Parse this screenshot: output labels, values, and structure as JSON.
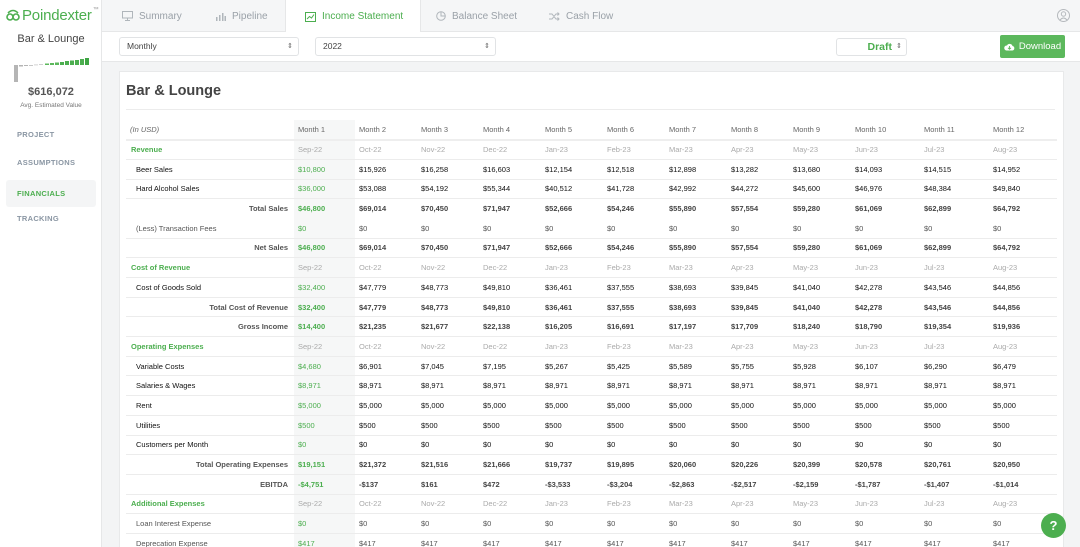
{
  "app": {
    "logo": "Poindexter",
    "tm": "™"
  },
  "sidebar": {
    "project_name": "Bar & Lounge",
    "est_value": "$616,072",
    "est_label": "Avg. Estimated Value",
    "items": [
      {
        "label": "PROJECT"
      },
      {
        "label": "ASSUMPTIONS"
      },
      {
        "label": "FINANCIALS"
      },
      {
        "label": "TRACKING"
      }
    ]
  },
  "tabs": [
    {
      "label": "Summary"
    },
    {
      "label": "Pipeline"
    },
    {
      "label": "Income Statement"
    },
    {
      "label": "Balance Sheet"
    },
    {
      "label": "Cash Flow"
    }
  ],
  "toolbar": {
    "period": "Monthly",
    "year": "2022",
    "status": "Draft",
    "download_label": "Download"
  },
  "colors": {
    "accent": "#4cae4f",
    "button": "#5cb85c"
  },
  "statement": {
    "title": "Bar & Lounge",
    "unit_label": "(In USD)",
    "months": [
      "Month 1",
      "Month 2",
      "Month 3",
      "Month 4",
      "Month 5",
      "Month 6",
      "Month 7",
      "Month 8",
      "Month 9",
      "Month 10",
      "Month 11",
      "Month 12"
    ],
    "dates": [
      "Sep-22",
      "Oct-22",
      "Nov-22",
      "Dec-22",
      "Jan-23",
      "Feb-23",
      "Mar-23",
      "Apr-23",
      "May-23",
      "Jun-23",
      "Jul-23",
      "Aug-23"
    ],
    "sections": {
      "revenue": "Revenue",
      "cost_of_revenue": "Cost of Revenue",
      "operating_expenses": "Operating Expenses",
      "additional_expenses": "Additional Expenses"
    },
    "rows": {
      "beer_sales": {
        "label": "Beer Sales",
        "values": [
          "$10,800",
          "$15,926",
          "$16,258",
          "$16,603",
          "$12,154",
          "$12,518",
          "$12,898",
          "$13,282",
          "$13,680",
          "$14,093",
          "$14,515",
          "$14,952"
        ]
      },
      "hard_alcohol_sales": {
        "label": "Hard Alcohol Sales",
        "values": [
          "$36,000",
          "$53,088",
          "$54,192",
          "$55,344",
          "$40,512",
          "$41,728",
          "$42,992",
          "$44,272",
          "$45,600",
          "$46,976",
          "$48,384",
          "$49,840"
        ]
      },
      "total_sales": {
        "label": "Total Sales",
        "values": [
          "$46,800",
          "$69,014",
          "$70,450",
          "$71,947",
          "$52,666",
          "$54,246",
          "$55,890",
          "$57,554",
          "$59,280",
          "$61,069",
          "$62,899",
          "$64,792"
        ]
      },
      "transaction_fees": {
        "label": "(Less) Transaction Fees",
        "values": [
          "$0",
          "$0",
          "$0",
          "$0",
          "$0",
          "$0",
          "$0",
          "$0",
          "$0",
          "$0",
          "$0",
          "$0"
        ]
      },
      "net_sales": {
        "label": "Net Sales",
        "values": [
          "$46,800",
          "$69,014",
          "$70,450",
          "$71,947",
          "$52,666",
          "$54,246",
          "$55,890",
          "$57,554",
          "$59,280",
          "$61,069",
          "$62,899",
          "$64,792"
        ]
      },
      "cogs": {
        "label": "Cost of Goods Sold",
        "values": [
          "$32,400",
          "$47,779",
          "$48,773",
          "$49,810",
          "$36,461",
          "$37,555",
          "$38,693",
          "$39,845",
          "$41,040",
          "$42,278",
          "$43,546",
          "$44,856"
        ]
      },
      "total_cost_revenue": {
        "label": "Total Cost of Revenue",
        "values": [
          "$32,400",
          "$47,779",
          "$48,773",
          "$49,810",
          "$36,461",
          "$37,555",
          "$38,693",
          "$39,845",
          "$41,040",
          "$42,278",
          "$43,546",
          "$44,856"
        ]
      },
      "gross_income": {
        "label": "Gross Income",
        "values": [
          "$14,400",
          "$21,235",
          "$21,677",
          "$22,138",
          "$16,205",
          "$16,691",
          "$17,197",
          "$17,709",
          "$18,240",
          "$18,790",
          "$19,354",
          "$19,936"
        ]
      },
      "variable_costs": {
        "label": "Variable Costs",
        "values": [
          "$4,680",
          "$6,901",
          "$7,045",
          "$7,195",
          "$5,267",
          "$5,425",
          "$5,589",
          "$5,755",
          "$5,928",
          "$6,107",
          "$6,290",
          "$6,479"
        ]
      },
      "salaries": {
        "label": "Salaries & Wages",
        "values": [
          "$8,971",
          "$8,971",
          "$8,971",
          "$8,971",
          "$8,971",
          "$8,971",
          "$8,971",
          "$8,971",
          "$8,971",
          "$8,971",
          "$8,971",
          "$8,971"
        ]
      },
      "rent": {
        "label": "Rent",
        "values": [
          "$5,000",
          "$5,000",
          "$5,000",
          "$5,000",
          "$5,000",
          "$5,000",
          "$5,000",
          "$5,000",
          "$5,000",
          "$5,000",
          "$5,000",
          "$5,000"
        ]
      },
      "utilities": {
        "label": "Utilities",
        "values": [
          "$500",
          "$500",
          "$500",
          "$500",
          "$500",
          "$500",
          "$500",
          "$500",
          "$500",
          "$500",
          "$500",
          "$500"
        ]
      },
      "customers": {
        "label": "Customers per Month",
        "values": [
          "$0",
          "$0",
          "$0",
          "$0",
          "$0",
          "$0",
          "$0",
          "$0",
          "$0",
          "$0",
          "$0",
          "$0"
        ]
      },
      "total_opex": {
        "label": "Total Operating Expenses",
        "values": [
          "$19,151",
          "$21,372",
          "$21,516",
          "$21,666",
          "$19,737",
          "$19,895",
          "$20,060",
          "$20,226",
          "$20,399",
          "$20,578",
          "$20,761",
          "$20,950"
        ]
      },
      "ebitda": {
        "label": "EBITDA",
        "values": [
          "-$4,751",
          "-$137",
          "$161",
          "$472",
          "-$3,533",
          "-$3,204",
          "-$2,863",
          "-$2,517",
          "-$2,159",
          "-$1,787",
          "-$1,407",
          "-$1,014"
        ]
      },
      "loan_interest": {
        "label": "Loan Interest Expense",
        "values": [
          "$0",
          "$0",
          "$0",
          "$0",
          "$0",
          "$0",
          "$0",
          "$0",
          "$0",
          "$0",
          "$0",
          "$0"
        ]
      },
      "depreciation": {
        "label": "Deprecation Expense",
        "values": [
          "$417",
          "$417",
          "$417",
          "$417",
          "$417",
          "$417",
          "$417",
          "$417",
          "$417",
          "$417",
          "$417",
          "$417"
        ]
      }
    }
  },
  "help_label": "?"
}
